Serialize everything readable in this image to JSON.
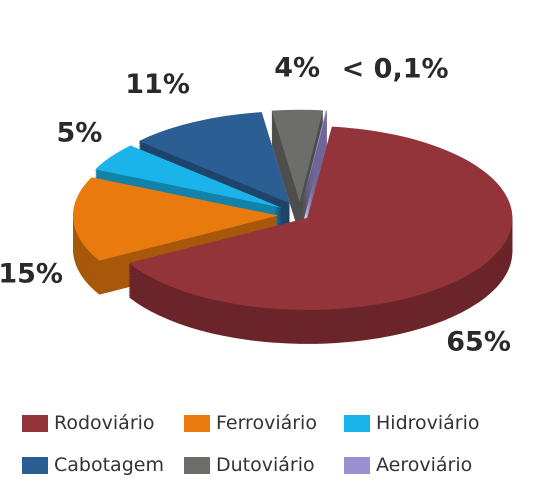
{
  "chart_data": {
    "type": "pie",
    "categories": [
      "Rodoviário",
      "Ferroviário",
      "Hidroviário",
      "Cabotagem",
      "Dutoviário",
      "Aeroviário"
    ],
    "values": [
      65,
      15,
      5,
      11,
      4,
      0.1
    ],
    "value_labels": [
      "65%",
      "15%",
      "5%",
      "11%",
      "4%",
      "< 0,1%"
    ],
    "colors": [
      "#93343a",
      "#e87a0e",
      "#1ab4ea",
      "#2b5e93",
      "#6d6e6a",
      "#9b8fd0"
    ],
    "legend": "bottom"
  }
}
